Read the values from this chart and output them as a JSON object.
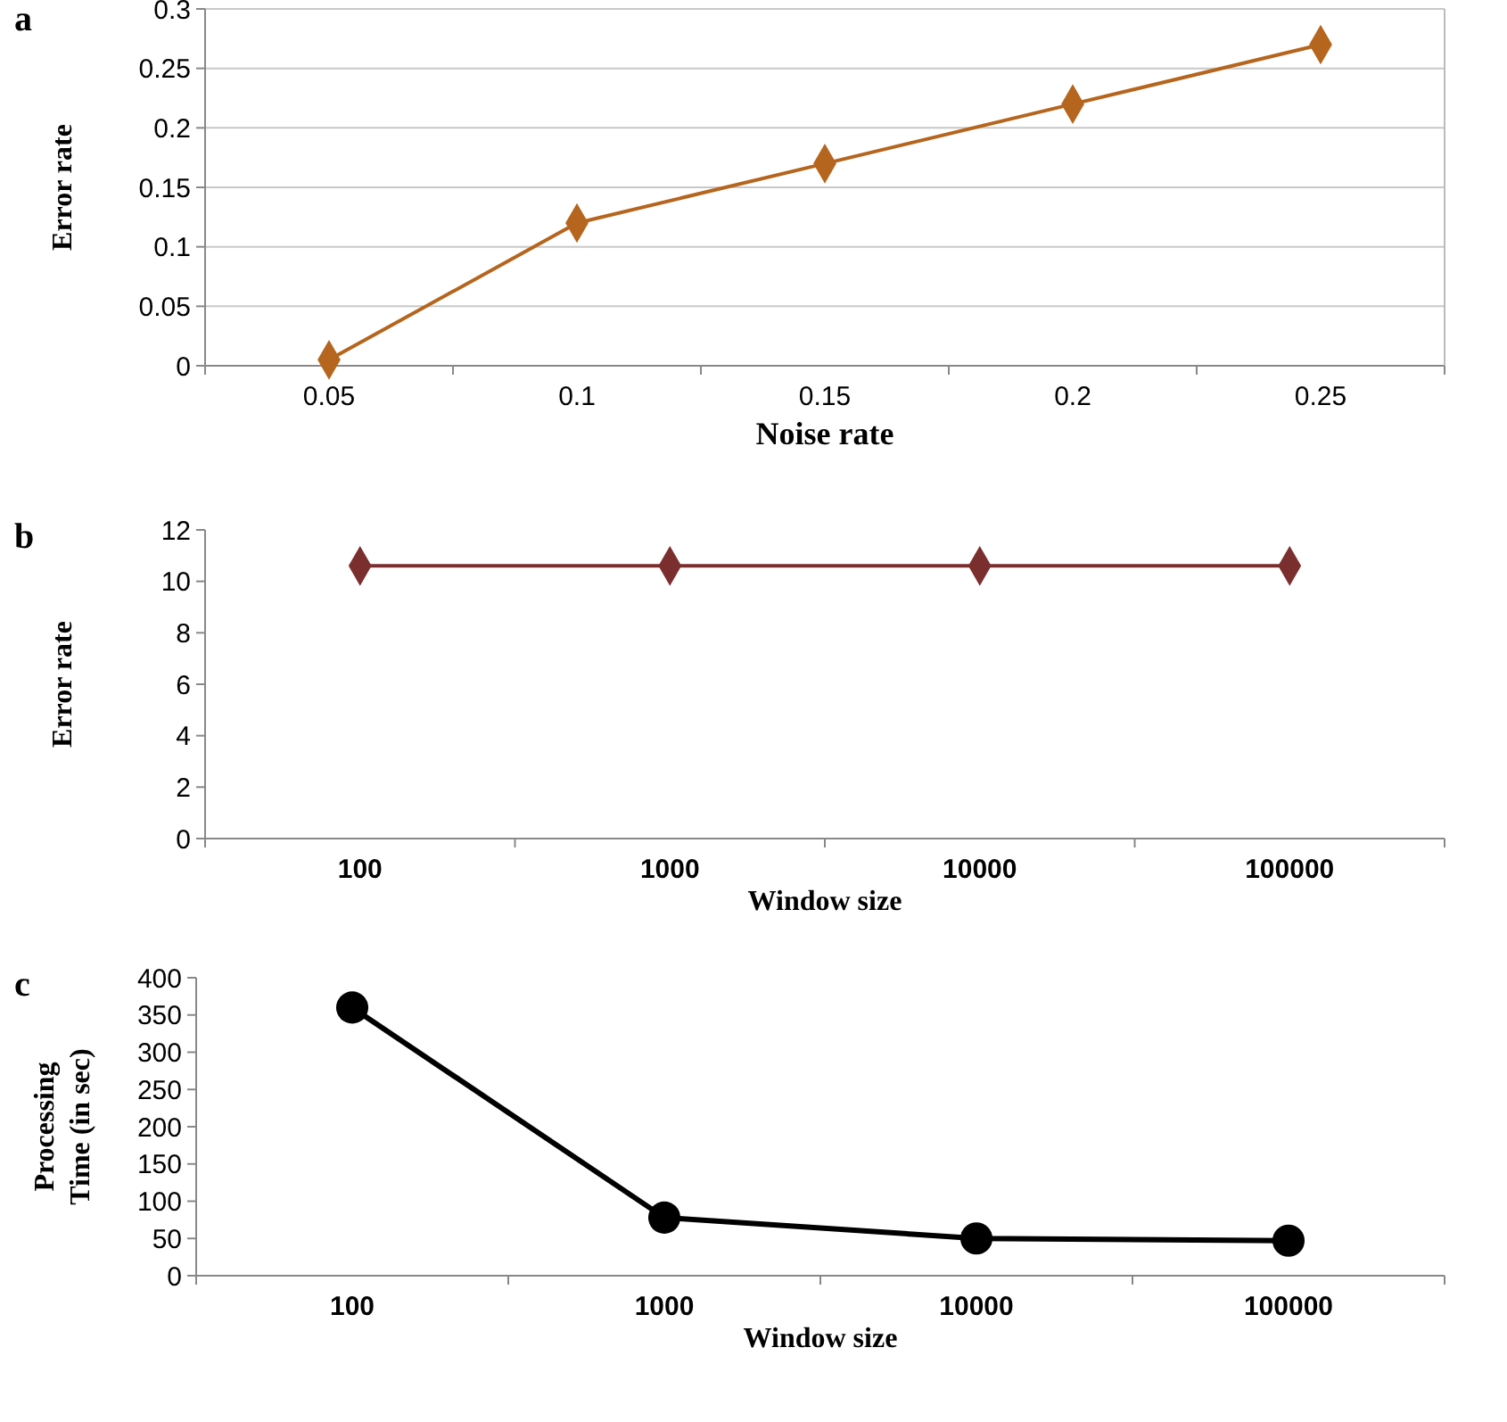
{
  "chart_data": [
    {
      "type": "line",
      "title": "a",
      "xlabel": "Noise rate",
      "ylabel": "Error rate",
      "categories": [
        "0.05",
        "0.1",
        "0.15",
        "0.2",
        "0.25"
      ],
      "series": [
        {
          "color": "#b5651d",
          "values": [
            0.005,
            0.12,
            0.17,
            0.22,
            0.27
          ]
        }
      ],
      "ylim": [
        0,
        0.3
      ],
      "yticks": [
        0,
        0.05,
        0.1,
        0.15,
        0.2,
        0.25,
        0.3
      ],
      "grid": "y",
      "marker": "diamond",
      "line_style": "solid"
    },
    {
      "type": "line",
      "title": "b",
      "xlabel": "Window size",
      "ylabel": "Error rate",
      "categories": [
        "100",
        "1000",
        "10000",
        "100000"
      ],
      "series": [
        {
          "color": "#7b2e2e",
          "values": [
            10.6,
            10.6,
            10.6,
            10.6
          ]
        }
      ],
      "ylim": [
        0,
        12
      ],
      "yticks": [
        0,
        2,
        4,
        6,
        8,
        10,
        12
      ],
      "marker": "diamond",
      "line_style": "solid"
    },
    {
      "type": "line",
      "title": "c",
      "xlabel": "Window size",
      "ylabel": "Processing Time (in sec)",
      "categories": [
        "100",
        "1000",
        "10000",
        "100000"
      ],
      "series": [
        {
          "color": "#000000",
          "values": [
            360,
            78,
            50,
            47
          ]
        }
      ],
      "ylim": [
        0,
        400
      ],
      "yticks": [
        0,
        50,
        100,
        150,
        200,
        250,
        300,
        350,
        400
      ],
      "marker": "circle",
      "line_style": "solid"
    }
  ]
}
